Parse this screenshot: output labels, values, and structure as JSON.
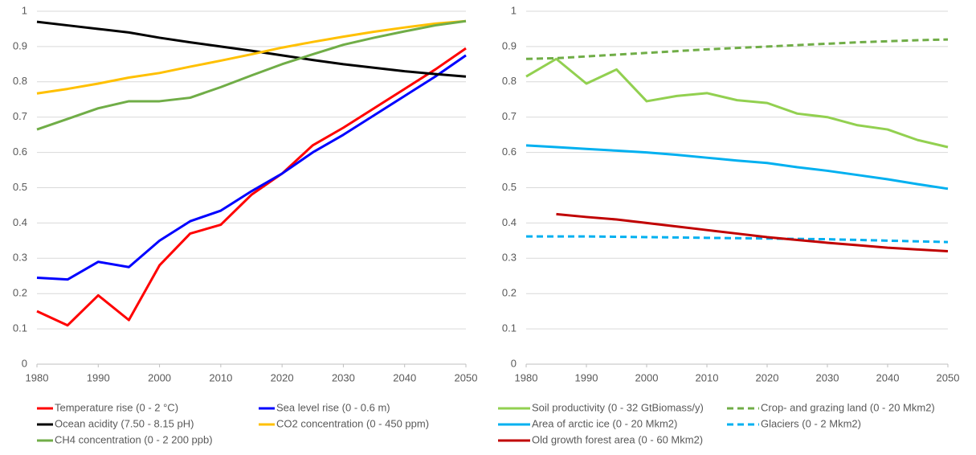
{
  "chart_data": [
    {
      "type": "line",
      "x": [
        1980,
        1985,
        1990,
        1995,
        2000,
        2005,
        2010,
        2015,
        2020,
        2025,
        2030,
        2035,
        2040,
        2045,
        2050
      ],
      "xlim": [
        1980,
        2050
      ],
      "xticks": [
        1980,
        1990,
        2000,
        2010,
        2020,
        2030,
        2040,
        2050
      ],
      "ylim": [
        0,
        1
      ],
      "yticks": [
        0,
        0.1,
        0.2,
        0.3,
        0.4,
        0.5,
        0.6,
        0.7,
        0.8,
        0.9,
        1
      ],
      "grid": true,
      "series": [
        {
          "name": "Temperature rise (0 - 2 °C)",
          "color": "#ff0000",
          "values": [
            0.15,
            0.11,
            0.195,
            0.125,
            0.28,
            0.37,
            0.395,
            0.48,
            0.54,
            0.62,
            0.67,
            0.725,
            0.78,
            0.835,
            0.895
          ]
        },
        {
          "name": "Sea level rise (0 - 0.6 m)",
          "color": "#0000ff",
          "values": [
            0.245,
            0.24,
            0.29,
            0.275,
            0.35,
            0.405,
            0.435,
            0.49,
            0.54,
            0.6,
            0.65,
            0.705,
            0.76,
            0.815,
            0.875
          ]
        },
        {
          "name": "Ocean acidity (7.50 - 8.15 pH)",
          "color": "#000000",
          "values": [
            0.97,
            0.96,
            0.95,
            0.94,
            0.925,
            0.912,
            0.9,
            0.888,
            0.875,
            0.862,
            0.85,
            0.84,
            0.83,
            0.822,
            0.815
          ]
        },
        {
          "name": "CO2 concentration (0 - 450 ppm)",
          "color": "#ffc000",
          "values": [
            0.767,
            0.78,
            0.795,
            0.812,
            0.825,
            0.843,
            0.86,
            0.878,
            0.897,
            0.913,
            0.928,
            0.942,
            0.954,
            0.965,
            0.972
          ]
        },
        {
          "name": "CH4 concentration (0 - 2 200 ppb)",
          "color": "#70ad47",
          "values": [
            0.665,
            0.695,
            0.725,
            0.745,
            0.745,
            0.755,
            0.785,
            0.818,
            0.85,
            0.878,
            0.905,
            0.925,
            0.943,
            0.96,
            0.972
          ]
        }
      ]
    },
    {
      "type": "line",
      "x": [
        1980,
        1985,
        1990,
        1995,
        2000,
        2005,
        2010,
        2015,
        2020,
        2025,
        2030,
        2035,
        2040,
        2045,
        2050
      ],
      "xlim": [
        1980,
        2050
      ],
      "xticks": [
        1980,
        1990,
        2000,
        2010,
        2020,
        2030,
        2040,
        2050
      ],
      "ylim": [
        0,
        1
      ],
      "yticks": [
        0,
        0.1,
        0.2,
        0.3,
        0.4,
        0.5,
        0.6,
        0.7,
        0.8,
        0.9,
        1
      ],
      "grid": true,
      "series": [
        {
          "name": "Soil productivity (0 - 32 GtBiomass/y)",
          "color": "#92d050",
          "values": [
            0.815,
            0.865,
            0.795,
            0.835,
            0.745,
            0.76,
            0.768,
            0.748,
            0.74,
            0.71,
            0.7,
            0.677,
            0.665,
            0.635,
            0.615
          ]
        },
        {
          "name": "Crop- and grazing land (0 - 20 Mkm2)",
          "color": "#70ad47",
          "dashed": true,
          "values": [
            0.865,
            0.867,
            0.872,
            0.877,
            0.882,
            0.887,
            0.892,
            0.896,
            0.9,
            0.904,
            0.908,
            0.912,
            0.915,
            0.918,
            0.92
          ]
        },
        {
          "name": "Area of arctic ice (0 -  20 Mkm2)",
          "color": "#00b0f0",
          "values": [
            0.62,
            0.615,
            0.61,
            0.605,
            0.6,
            0.593,
            0.585,
            0.577,
            0.57,
            0.558,
            0.548,
            0.536,
            0.524,
            0.51,
            0.497
          ]
        },
        {
          "name": "Glaciers (0 -  2 Mkm2)",
          "color": "#00b0f0",
          "dashed": true,
          "values": [
            0.362,
            0.362,
            0.362,
            0.361,
            0.36,
            0.359,
            0.358,
            0.357,
            0.356,
            0.355,
            0.354,
            0.352,
            0.35,
            0.348,
            0.346
          ]
        },
        {
          "name": "Old growth forest area (0 - 60 Mkm2)",
          "color": "#c00000",
          "values": [
            null,
            0.425,
            0.417,
            0.41,
            0.4,
            0.39,
            0.38,
            0.37,
            0.36,
            0.352,
            0.344,
            0.337,
            0.33,
            0.325,
            0.32
          ]
        }
      ]
    }
  ]
}
